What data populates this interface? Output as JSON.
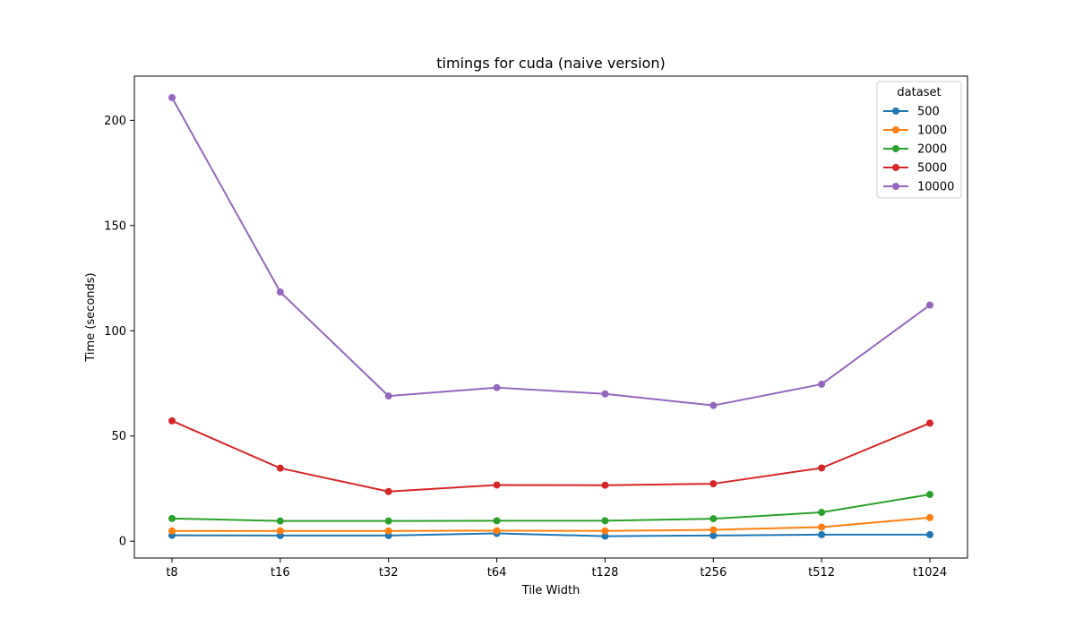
{
  "chart_data": {
    "type": "line",
    "title": "timings for cuda (naive version)",
    "xlabel": "Tile Width",
    "ylabel": "Time (seconds)",
    "categories": [
      "t8",
      "t16",
      "t32",
      "t64",
      "t128",
      "t256",
      "t512",
      "t1024"
    ],
    "yticks": [
      0,
      50,
      100,
      150,
      200
    ],
    "ylim": [
      -8,
      221
    ],
    "grid": false,
    "legend": {
      "title": "dataset",
      "placement": "top-right"
    },
    "series": [
      {
        "name": "500",
        "color": "#1f77b4",
        "values": [
          2.8,
          2.7,
          2.7,
          3.7,
          2.4,
          2.7,
          3.1,
          3.1
        ]
      },
      {
        "name": "1000",
        "color": "#ff7f0e",
        "values": [
          4.9,
          4.9,
          4.9,
          5.0,
          4.9,
          5.4,
          6.7,
          11.2
        ]
      },
      {
        "name": "2000",
        "color": "#2ca02c",
        "values": [
          10.8,
          9.6,
          9.6,
          9.7,
          9.7,
          10.7,
          13.7,
          22.2
        ]
      },
      {
        "name": "5000",
        "color": "#d62728",
        "values": [
          57.2,
          34.7,
          23.6,
          26.7,
          26.6,
          27.3,
          34.8,
          56.1
        ]
      },
      {
        "name": "10000",
        "color": "#9467bd",
        "values": [
          210.8,
          118.4,
          69.0,
          73.0,
          70.0,
          64.5,
          74.6,
          112.2
        ]
      }
    ]
  }
}
